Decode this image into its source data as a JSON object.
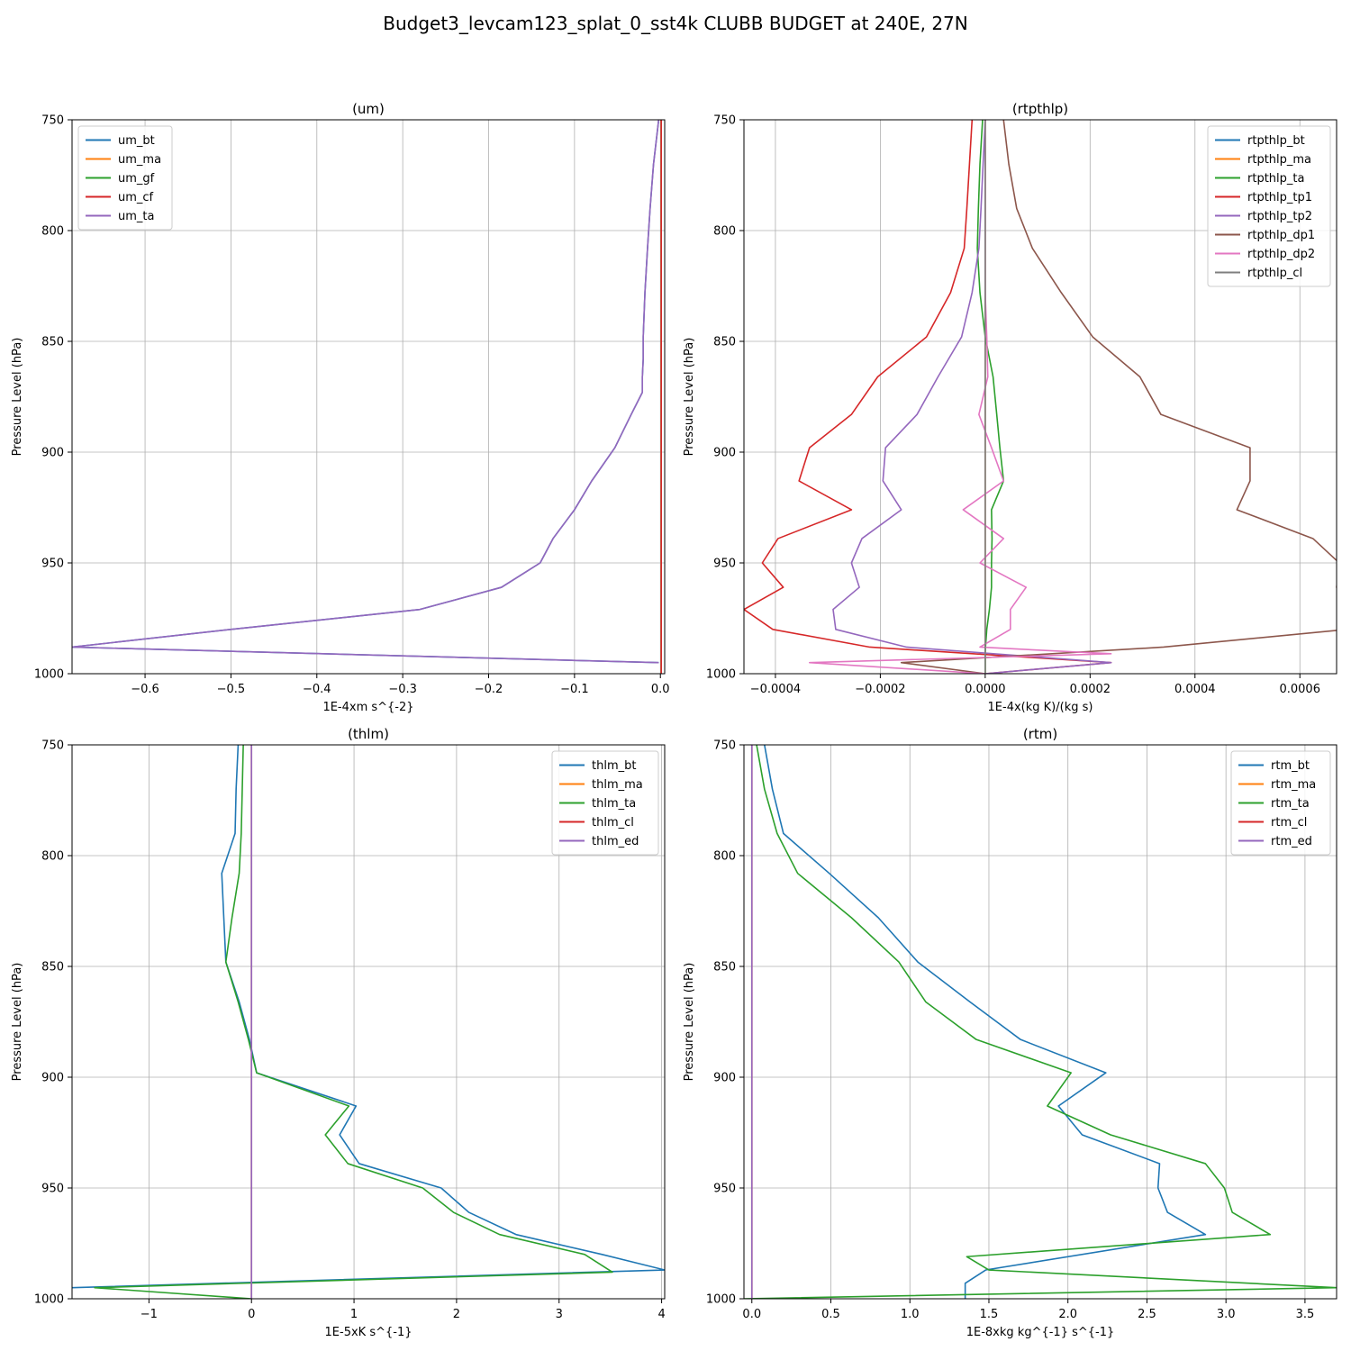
{
  "figure": {
    "title": "Budget3_levcam123_splat_0_sst4k CLUBB BUDGET at 240E, 27N"
  },
  "colors": {
    "c0": "#1f77b4",
    "c1": "#ff7f0e",
    "c2": "#2ca02c",
    "c3": "#d62728",
    "c4": "#9467bd",
    "c5": "#8c564b",
    "c6": "#e377c2",
    "c7": "#7f7f7f",
    "grid": "#b0b0b0",
    "axis": "#000000"
  },
  "chart_data": [
    {
      "type": "line",
      "title": "(um)",
      "xlabel": "1E-4xm s^{-2}",
      "ylabel": "Pressure Level (hPa)",
      "xlim": [
        -0.685,
        0.005
      ],
      "ylim": [
        1000,
        750
      ],
      "y_inverted": true,
      "xticks": [
        -0.6,
        -0.5,
        -0.4,
        -0.3,
        -0.2,
        -0.1,
        0.0
      ],
      "xtick_labels": [
        "−0.6",
        "−0.5",
        "−0.4",
        "−0.3",
        "−0.2",
        "−0.1",
        "0.0"
      ],
      "yticks": [
        750,
        800,
        850,
        900,
        950,
        1000
      ],
      "ytick_labels": [
        "750",
        "800",
        "850",
        "900",
        "950",
        "1000"
      ],
      "grid": true,
      "legend_position": "upper-left",
      "series": [
        {
          "name": "um_bt",
          "color_key": "c0",
          "x": [
            -0.002,
            -0.008,
            -0.012,
            -0.015,
            -0.018,
            -0.02,
            -0.02,
            -0.021,
            -0.021,
            -0.034,
            -0.053,
            -0.08,
            -0.1,
            -0.125,
            -0.14,
            -0.185,
            -0.28,
            -0.5,
            -0.685,
            -0.002
          ],
          "y": [
            750,
            770,
            790,
            808,
            828,
            848,
            858,
            866,
            873,
            883,
            898,
            913,
            926,
            939,
            950,
            961,
            971,
            980,
            988,
            995
          ]
        },
        {
          "name": "um_ma",
          "color_key": "c1",
          "x": [
            0.001,
            0.001,
            0.001,
            0.001,
            0.001
          ],
          "y": [
            750,
            850,
            950,
            990,
            1000
          ]
        },
        {
          "name": "um_gf",
          "color_key": "c2",
          "x": [
            0.001,
            0.001,
            0.001,
            0.001,
            0.001
          ],
          "y": [
            750,
            850,
            950,
            990,
            1000
          ]
        },
        {
          "name": "um_cf",
          "color_key": "c3",
          "x": [
            0.001,
            0.001,
            0.001,
            0.001,
            0.001
          ],
          "y": [
            750,
            850,
            950,
            990,
            1000
          ]
        },
        {
          "name": "um_ta",
          "color_key": "c4",
          "x": [
            -0.002,
            -0.008,
            -0.012,
            -0.015,
            -0.018,
            -0.02,
            -0.02,
            -0.021,
            -0.021,
            -0.034,
            -0.053,
            -0.08,
            -0.1,
            -0.125,
            -0.14,
            -0.185,
            -0.28,
            -0.5,
            -0.685,
            -0.002
          ],
          "y": [
            750,
            770,
            790,
            808,
            828,
            848,
            858,
            866,
            873,
            883,
            898,
            913,
            926,
            939,
            950,
            961,
            971,
            980,
            988,
            995
          ]
        }
      ]
    },
    {
      "type": "line",
      "title": "(rtpthlp)",
      "xlabel": "1E-4x(kg K)/(kg s)",
      "ylabel": "Pressure Level (hPa)",
      "xlim": [
        -0.00046,
        0.00067
      ],
      "ylim": [
        1000,
        750
      ],
      "y_inverted": true,
      "xticks": [
        -0.0004,
        -0.0002,
        0.0,
        0.0002,
        0.0004,
        0.0006
      ],
      "xtick_labels": [
        "−0.0004",
        "−0.0002",
        "0.0000",
        "0.0002",
        "0.0004",
        "0.0006"
      ],
      "yticks": [
        750,
        800,
        850,
        900,
        950,
        1000
      ],
      "ytick_labels": [
        "750",
        "800",
        "850",
        "900",
        "950",
        "1000"
      ],
      "grid": true,
      "legend_position": "upper-right",
      "series": [
        {
          "name": "rtpthlp_bt",
          "color_key": "c0",
          "x": [
            0.0,
            0.0,
            0.0,
            0.0,
            0.0
          ],
          "y": [
            750,
            850,
            950,
            990,
            1000
          ]
        },
        {
          "name": "rtpthlp_ma",
          "color_key": "c1",
          "x": [
            0.0,
            0.0,
            0.0,
            0.0,
            0.0
          ],
          "y": [
            750,
            850,
            950,
            990,
            1000
          ]
        },
        {
          "name": "rtpthlp_ta",
          "color_key": "c2",
          "x": [
            -5e-06,
            -1e-05,
            -1.3e-05,
            -1.5e-05,
            -1e-05,
            0.0,
            1.5e-05,
            2.2e-05,
            2.8e-05,
            3.5e-05,
            1.2e-05,
            1.3e-05,
            1.2e-05,
            1.2e-05,
            8e-06,
            3e-06,
            0.0,
            0.0
          ],
          "y": [
            750,
            770,
            790,
            808,
            828,
            848,
            866,
            883,
            898,
            913,
            926,
            939,
            950,
            961,
            971,
            980,
            990,
            1000
          ]
        },
        {
          "name": "rtpthlp_tp1",
          "color_key": "c3",
          "x": [
            -2.5e-05,
            -3e-05,
            -3.5e-05,
            -4e-05,
            -6.6e-05,
            -0.000112,
            -0.000205,
            -0.000255,
            -0.000335,
            -0.000355,
            -0.000255,
            -0.000395,
            -0.000425,
            -0.000385,
            -0.00046,
            -0.000405,
            -0.00022,
            0.00024,
            0.0
          ],
          "y": [
            750,
            770,
            790,
            808,
            828,
            848,
            866,
            883,
            898,
            913,
            926,
            939,
            950,
            961,
            971,
            980,
            988,
            995,
            1000
          ]
        },
        {
          "name": "rtpthlp_tp2",
          "color_key": "c4",
          "x": [
            0.0,
            -4e-06,
            -8e-06,
            -1.2e-05,
            -2.5e-05,
            -4.5e-05,
            -9e-05,
            -0.00013,
            -0.00019,
            -0.000195,
            -0.00016,
            -0.000235,
            -0.000255,
            -0.00024,
            -0.00029,
            -0.000285,
            -0.00015,
            0.00024,
            0.0
          ],
          "y": [
            750,
            770,
            790,
            808,
            828,
            848,
            866,
            883,
            898,
            913,
            926,
            939,
            950,
            961,
            971,
            980,
            988,
            995,
            1000
          ]
        },
        {
          "name": "rtpthlp_dp1",
          "color_key": "c5",
          "x": [
            3.5e-05,
            4.5e-05,
            6e-05,
            9e-05,
            0.000145,
            0.000205,
            0.000295,
            0.000335,
            0.000505,
            0.000505,
            0.00048,
            0.000625,
            0.000675,
            0.00067,
            0.000725,
            0.00069,
            0.00034,
            -0.00016,
            0.0
          ],
          "y": [
            750,
            770,
            790,
            808,
            828,
            848,
            866,
            883,
            898,
            913,
            926,
            939,
            950,
            961,
            971,
            980,
            988,
            995,
            1000
          ]
        },
        {
          "name": "rtpthlp_dp2",
          "color_key": "c6",
          "x": [
            0.0,
            0.0,
            0.0,
            0.0,
            0.0,
            3e-06,
            5e-06,
            -1.2e-05,
            1.2e-05,
            3.5e-05,
            -4.2e-05,
            3.5e-05,
            -1e-05,
            7.8e-05,
            4.8e-05,
            4.8e-05,
            -1e-05,
            0.00024,
            -0.000335,
            0.0
          ],
          "y": [
            750,
            770,
            790,
            808,
            828,
            848,
            866,
            883,
            898,
            913,
            926,
            939,
            950,
            961,
            971,
            980,
            988,
            991,
            995,
            1000
          ]
        },
        {
          "name": "rtpthlp_cl",
          "color_key": "c7",
          "x": [
            0.0,
            0.0,
            0.0,
            0.0,
            0.0
          ],
          "y": [
            750,
            850,
            950,
            990,
            1000
          ]
        }
      ]
    },
    {
      "type": "line",
      "title": "(thlm)",
      "xlabel": "1E-5xK s^{-1}",
      "ylabel": "Pressure Level (hPa)",
      "xlim": [
        -1.75,
        4.03
      ],
      "ylim": [
        1000,
        750
      ],
      "y_inverted": true,
      "xticks": [
        -1,
        0,
        1,
        2,
        3,
        4
      ],
      "xtick_labels": [
        "−1",
        "0",
        "1",
        "2",
        "3",
        "4"
      ],
      "yticks": [
        750,
        800,
        850,
        900,
        950,
        1000
      ],
      "ytick_labels": [
        "750",
        "800",
        "850",
        "900",
        "950",
        "1000"
      ],
      "grid": true,
      "legend_position": "upper-right",
      "series": [
        {
          "name": "thlm_bt",
          "color_key": "c0",
          "x": [
            -0.13,
            -0.15,
            -0.16,
            -0.29,
            -0.27,
            -0.25,
            -0.12,
            -0.02,
            0.05,
            1.02,
            0.86,
            1.05,
            1.85,
            2.12,
            2.58,
            3.42,
            4.03,
            -1.75
          ],
          "y": [
            750,
            770,
            790,
            808,
            828,
            848,
            866,
            883,
            898,
            913,
            926,
            939,
            950,
            961,
            971,
            980,
            987,
            995
          ]
        },
        {
          "name": "thlm_ma",
          "color_key": "c1",
          "x": [
            0.0,
            0.0,
            0.0,
            0.0,
            0.0,
            0.0,
            0.0
          ],
          "y": [
            750,
            850,
            900,
            950,
            990,
            995,
            1000
          ]
        },
        {
          "name": "thlm_ta",
          "color_key": "c2",
          "x": [
            -0.08,
            -0.09,
            -0.1,
            -0.12,
            -0.19,
            -0.25,
            -0.13,
            -0.03,
            0.05,
            0.95,
            0.72,
            0.94,
            1.67,
            1.97,
            2.42,
            3.25,
            3.52,
            -1.53,
            0.0
          ],
          "y": [
            750,
            770,
            790,
            808,
            828,
            848,
            866,
            883,
            898,
            913,
            926,
            939,
            950,
            961,
            971,
            980,
            988,
            995,
            1000
          ]
        },
        {
          "name": "thlm_cl",
          "color_key": "c3",
          "x": [
            0.0,
            0.0,
            0.0,
            0.0,
            0.0
          ],
          "y": [
            750,
            850,
            950,
            990,
            1000
          ]
        },
        {
          "name": "thlm_ed",
          "color_key": "c4",
          "x": [
            0.0,
            0.0,
            0.0,
            0.0,
            0.0
          ],
          "y": [
            750,
            850,
            950,
            990,
            1000
          ]
        }
      ]
    },
    {
      "type": "line",
      "title": "(rtm)",
      "xlabel": "1E-8xkg kg^{-1} s^{-1}",
      "ylabel": "Pressure Level (hPa)",
      "xlim": [
        -0.05,
        3.7
      ],
      "ylim": [
        1000,
        750
      ],
      "y_inverted": true,
      "xticks": [
        0.0,
        0.5,
        1.0,
        1.5,
        2.0,
        2.5,
        3.0,
        3.5
      ],
      "xtick_labels": [
        "0.0",
        "0.5",
        "1.0",
        "1.5",
        "2.0",
        "2.5",
        "3.0",
        "3.5"
      ],
      "yticks": [
        750,
        800,
        850,
        900,
        950,
        1000
      ],
      "ytick_labels": [
        "750",
        "800",
        "850",
        "900",
        "950",
        "1000"
      ],
      "grid": true,
      "legend_position": "upper-right",
      "series": [
        {
          "name": "rtm_bt",
          "color_key": "c0",
          "x": [
            0.08,
            0.13,
            0.2,
            0.49,
            0.8,
            1.05,
            1.38,
            1.7,
            2.24,
            1.94,
            2.09,
            2.58,
            2.57,
            2.63,
            2.87,
            1.48,
            1.35,
            1.35
          ],
          "y": [
            750,
            770,
            790,
            808,
            828,
            848,
            866,
            883,
            898,
            913,
            926,
            939,
            950,
            961,
            971,
            987,
            993,
            1000
          ]
        },
        {
          "name": "rtm_ma",
          "color_key": "c1",
          "x": [
            0.0,
            0.0,
            0.0,
            0.0,
            0.0
          ],
          "y": [
            750,
            850,
            950,
            990,
            1000
          ]
        },
        {
          "name": "rtm_ta",
          "color_key": "c2",
          "x": [
            0.03,
            0.08,
            0.16,
            0.29,
            0.63,
            0.93,
            1.1,
            1.42,
            2.02,
            1.87,
            2.27,
            2.87,
            2.99,
            3.04,
            3.28,
            1.36,
            1.5,
            3.7,
            -0.05
          ],
          "y": [
            750,
            770,
            790,
            808,
            828,
            848,
            866,
            883,
            898,
            913,
            926,
            939,
            950,
            961,
            971,
            981,
            987,
            995,
            1000
          ]
        },
        {
          "name": "rtm_cl",
          "color_key": "c3",
          "x": [
            0.0,
            0.0,
            0.0,
            0.0,
            0.0
          ],
          "y": [
            750,
            850,
            950,
            990,
            1000
          ]
        },
        {
          "name": "rtm_ed",
          "color_key": "c4",
          "x": [
            0.0,
            0.0,
            0.0,
            0.0,
            0.0
          ],
          "y": [
            750,
            850,
            950,
            990,
            1000
          ]
        }
      ]
    }
  ]
}
